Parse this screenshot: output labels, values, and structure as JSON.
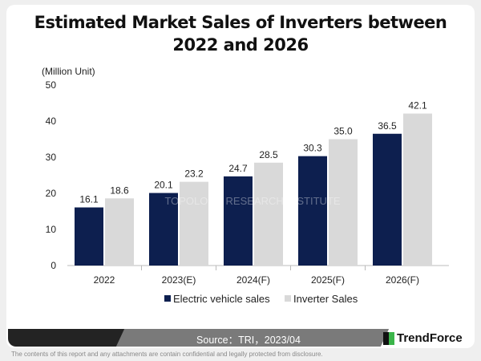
{
  "chart_data": {
    "type": "bar",
    "title": "Estimated Market Sales of Inverters between 2022 and 2026",
    "ylabel": "(Million Unit)",
    "xlabel": "",
    "categories": [
      "2022",
      "2023(E)",
      "2024(F)",
      "2025(F)",
      "2026(F)"
    ],
    "series": [
      {
        "name": "Electric vehicle sales",
        "color": "#0d1f4f",
        "values": [
          16.1,
          20.1,
          24.7,
          30.3,
          36.5
        ]
      },
      {
        "name": "Inverter Sales",
        "color": "#d9d9d9",
        "values": [
          18.6,
          23.2,
          28.5,
          35.0,
          42.1
        ]
      }
    ],
    "ylim": [
      0,
      50
    ],
    "yticks": [
      0,
      10,
      20,
      30,
      40,
      50
    ],
    "grid": false,
    "legend": "bottom"
  },
  "watermark": "拓墣 TRI TOPOLOGY RESEARCH INSTITUTE",
  "footer": {
    "source": "Source：TRI，2023/04",
    "brand": "TrendForce",
    "disclaimer": "The contents of this report and any attachments are contain confidential and legally protected from disclosure."
  }
}
